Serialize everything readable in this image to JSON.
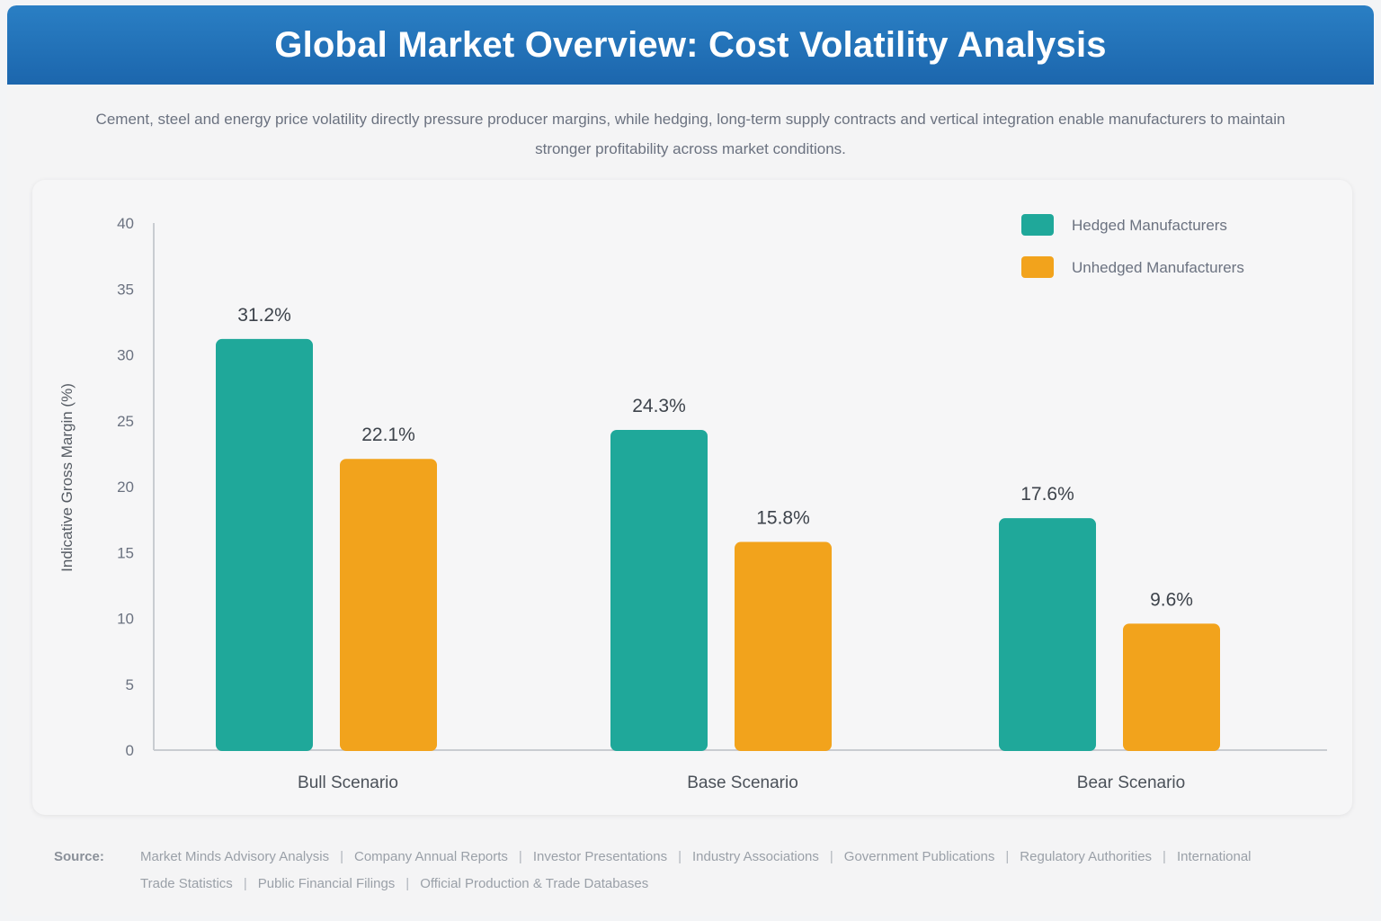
{
  "header": {
    "title": "Global Market Overview: Cost Volatility Analysis",
    "subtitle": "Cement, steel and energy price volatility directly pressure producer margins, while hedging, long-term supply contracts and vertical integration enable manufacturers to maintain stronger profitability across market conditions."
  },
  "chart_data": {
    "type": "bar",
    "title": "",
    "xlabel": "",
    "ylabel": "Indicative Gross Margin (%)",
    "ylim": [
      0,
      40
    ],
    "yticks": [
      0,
      5,
      10,
      15,
      20,
      25,
      30,
      35,
      40
    ],
    "categories": [
      "Bull Scenario",
      "Base Scenario",
      "Bear Scenario"
    ],
    "series": [
      {
        "name": "Hedged Manufacturers",
        "color": "#1fa89a",
        "values": [
          31.2,
          24.3,
          17.6
        ],
        "labels": [
          "31.2%",
          "24.3%",
          "17.6%"
        ]
      },
      {
        "name": "Unhedged Manufacturers",
        "color": "#f2a31c",
        "values": [
          22.1,
          15.8,
          9.6
        ],
        "labels": [
          "22.1%",
          "15.8%",
          "9.6%"
        ]
      }
    ],
    "grid": false,
    "legend_position": "top-right"
  },
  "footer": {
    "source_label": "Source:",
    "sources": [
      "Market Minds Advisory Analysis",
      "Company Annual Reports",
      "Investor Presentations",
      "Industry Associations",
      "Government Publications",
      "Regulatory Authorities",
      "International Trade Statistics",
      "Public Financial Filings",
      "Official Production & Trade Databases"
    ]
  }
}
